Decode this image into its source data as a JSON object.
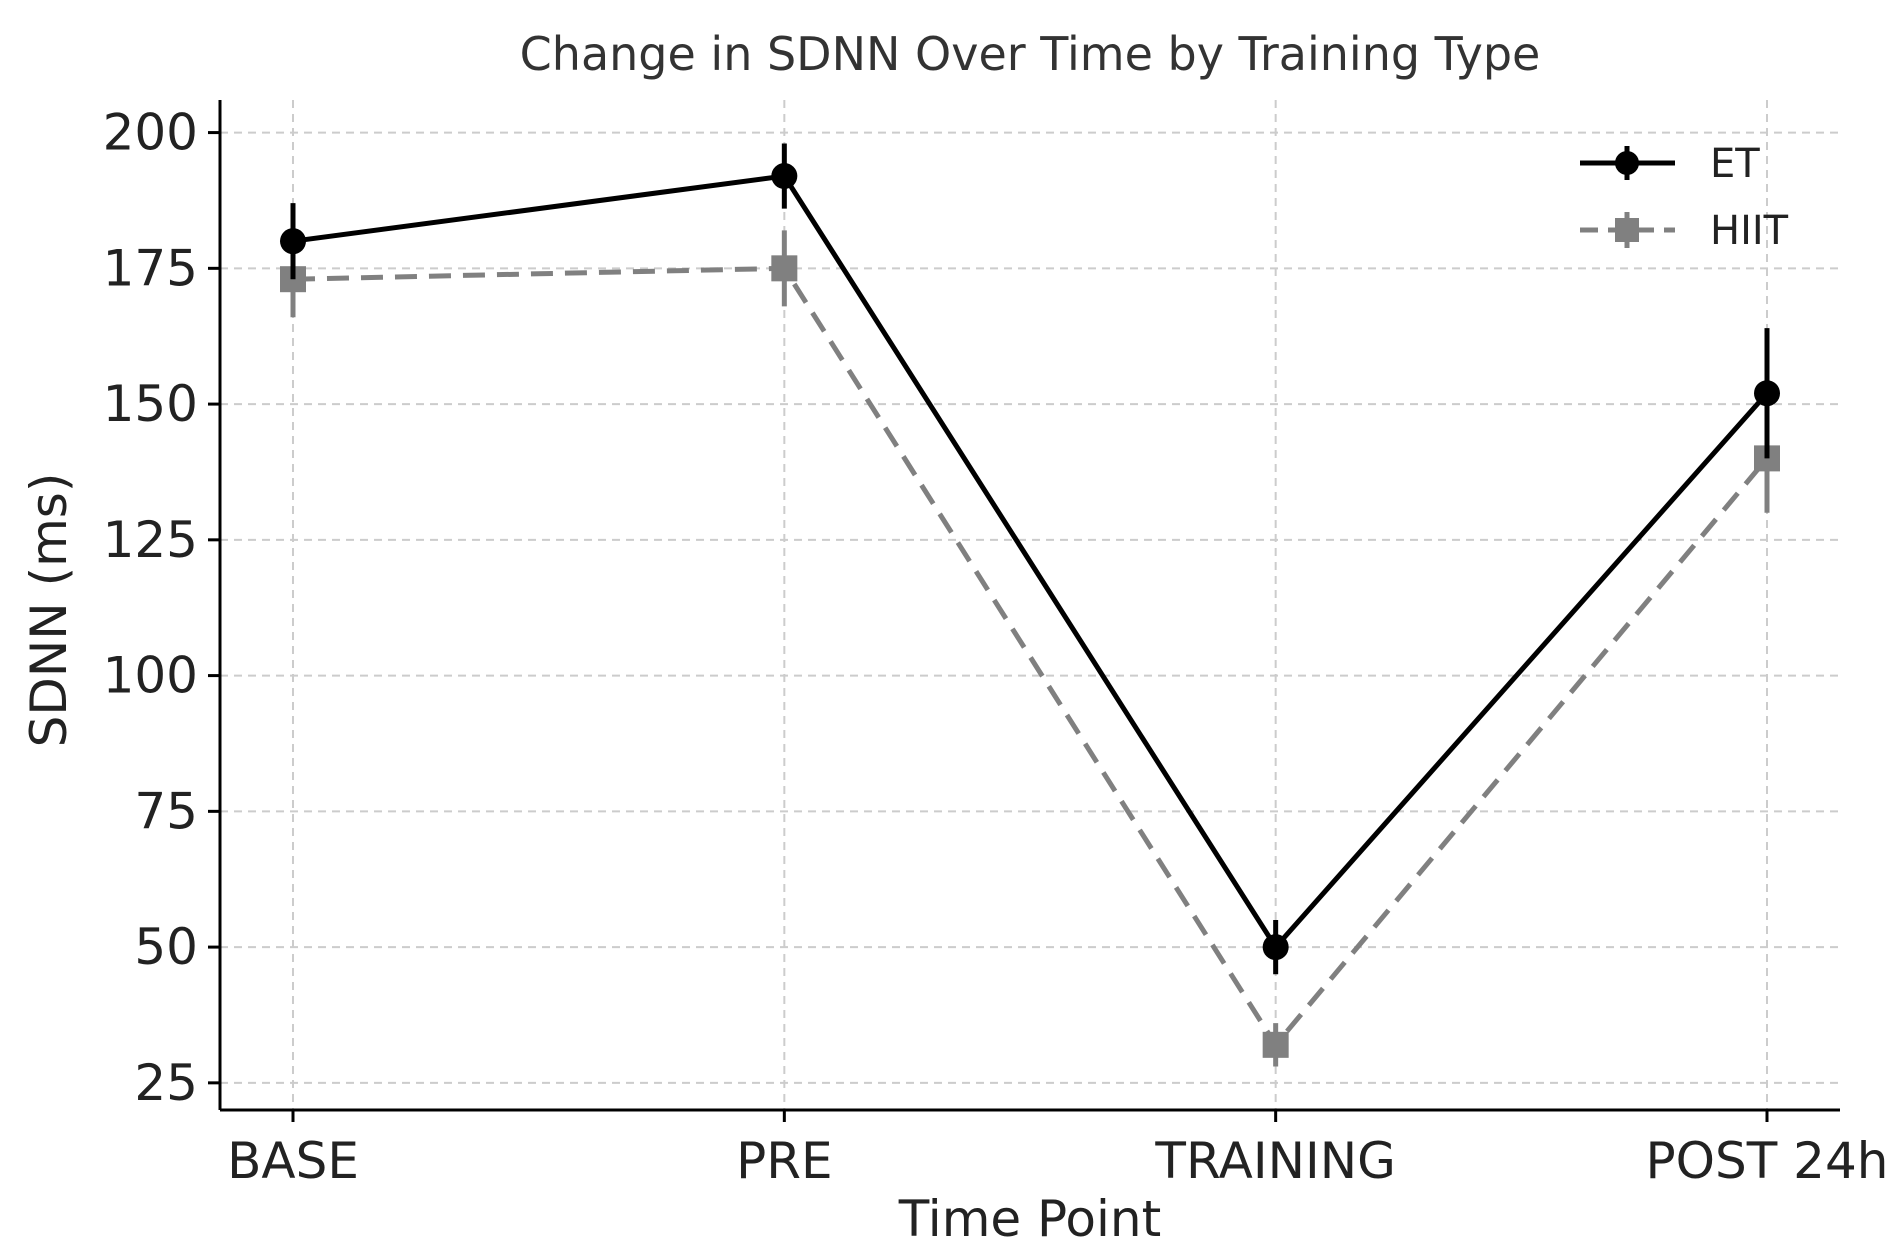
{
  "chart_data": {
    "type": "line",
    "title": "Change in SDNN Over Time by Training Type",
    "xlabel": "Time Point",
    "ylabel": "SDNN (ms)",
    "categories": [
      "BASE",
      "PRE",
      "TRAINING",
      "POST 24h"
    ],
    "ylim": [
      20,
      206
    ],
    "yticks": [
      25,
      50,
      75,
      100,
      125,
      150,
      175,
      200
    ],
    "grid": true,
    "legend_position": "top-right",
    "series": [
      {
        "name": "ET",
        "values": [
          180,
          192,
          50,
          152
        ],
        "error_low": [
          173,
          186,
          45,
          140
        ],
        "error_high": [
          187,
          198,
          55,
          164
        ],
        "color": "#000000",
        "line_style": "solid",
        "marker": "circle"
      },
      {
        "name": "HIIT",
        "values": [
          173,
          175,
          32,
          140
        ],
        "error_low": [
          166,
          168,
          28,
          130
        ],
        "error_high": [
          180,
          182,
          36,
          150
        ],
        "color": "#808080",
        "line_style": "dashed",
        "marker": "square"
      }
    ]
  }
}
